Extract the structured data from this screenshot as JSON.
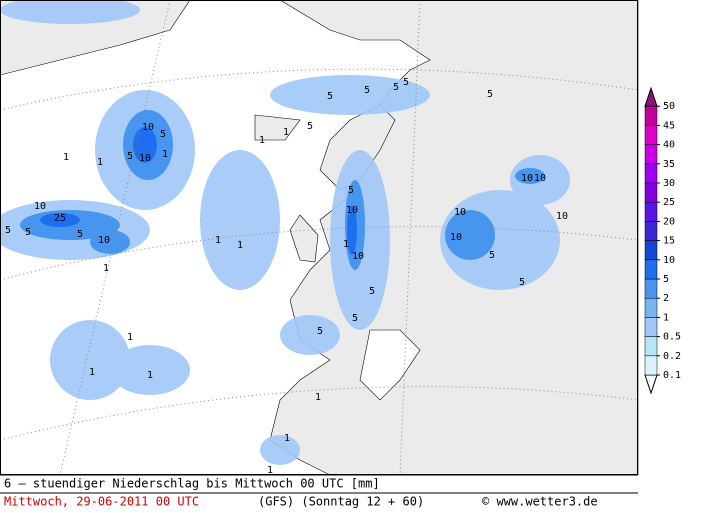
{
  "map": {
    "title": "6 – stuendiger Niederschlag bis Mittwoch 00 UTC [mm]",
    "date": "Mittwoch, 29-06-2011  00 UTC",
    "model": "(GFS)  (Sonntag 12 + 60)",
    "credit": "© www.wetter3.de",
    "legend": {
      "levels": [
        0.1,
        0.2,
        0.5,
        1,
        2,
        5,
        10,
        15,
        20,
        25,
        30,
        35,
        40,
        45,
        50
      ],
      "colors": [
        "#ffffff",
        "#d8f4fa",
        "#b4e8f8",
        "#a0c8f8",
        "#78b4f0",
        "#4696f0",
        "#1e6ef0",
        "#1446d2",
        "#3c28d2",
        "#5a14e6",
        "#8200dc",
        "#a000f0",
        "#c800e6",
        "#dc00c8",
        "#c0009c",
        "#8c1478"
      ]
    },
    "contour_labels": [
      "10",
      "5",
      "10",
      "5",
      "1",
      "1",
      "10",
      "25",
      "5",
      "5",
      "10",
      "1",
      "5",
      "1",
      "5",
      "5",
      "5",
      "5",
      "5",
      "5",
      "10",
      "1",
      "10",
      "5",
      "5",
      "5",
      "10",
      "10",
      "5",
      "10",
      "10",
      "10",
      "5",
      "5",
      "1",
      "1",
      "1",
      "1",
      "1",
      "1",
      "1",
      "1",
      "1",
      "1"
    ]
  }
}
